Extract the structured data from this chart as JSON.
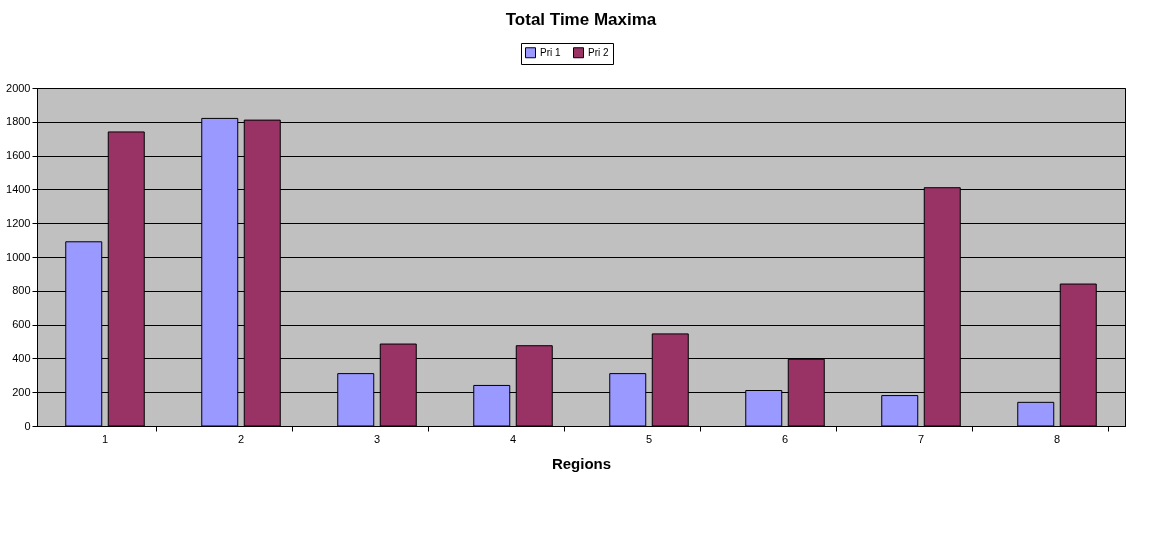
{
  "chart_data": {
    "type": "bar",
    "title": "Total Time Maxima",
    "xlabel": "Regions",
    "categories": [
      "1",
      "2",
      "3",
      "4",
      "5",
      "6",
      "7",
      "8"
    ],
    "series": [
      {
        "name": "Pri 1",
        "color": "#9999ff",
        "values": [
          1090,
          1820,
          310,
          240,
          310,
          210,
          180,
          140
        ]
      },
      {
        "name": "Pri 2",
        "color": "#993366",
        "values": [
          1740,
          1810,
          485,
          475,
          545,
          395,
          1410,
          840
        ]
      }
    ],
    "ylim": [
      0,
      2000
    ],
    "yticks": [
      0,
      200,
      400,
      600,
      800,
      1000,
      1200,
      1400,
      1600,
      1800,
      2000
    ],
    "grid": "y",
    "legend": "top"
  }
}
